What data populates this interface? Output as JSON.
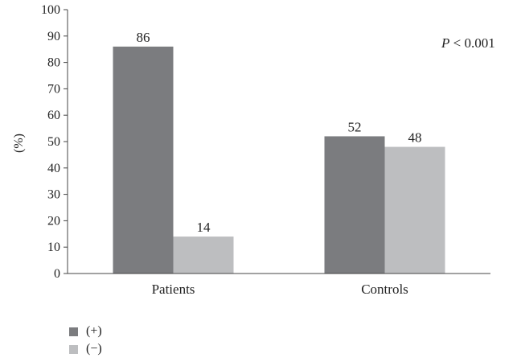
{
  "chart_data": {
    "type": "bar",
    "categories": [
      "Patients",
      "Controls"
    ],
    "series": [
      {
        "name": "(+)",
        "values": [
          86,
          52
        ],
        "color": "#7b7c7f"
      },
      {
        "name": "(−)",
        "values": [
          14,
          48
        ],
        "color": "#bdbec0"
      }
    ],
    "ylabel": "(%)",
    "xlabel": "",
    "ylim": [
      0,
      100
    ],
    "yticks": [
      0,
      10,
      20,
      30,
      40,
      50,
      60,
      70,
      80,
      90,
      100
    ],
    "annotation": {
      "italic": "P",
      "text": " < 0.001"
    },
    "legend_position": "bottom-left",
    "grid": false
  }
}
